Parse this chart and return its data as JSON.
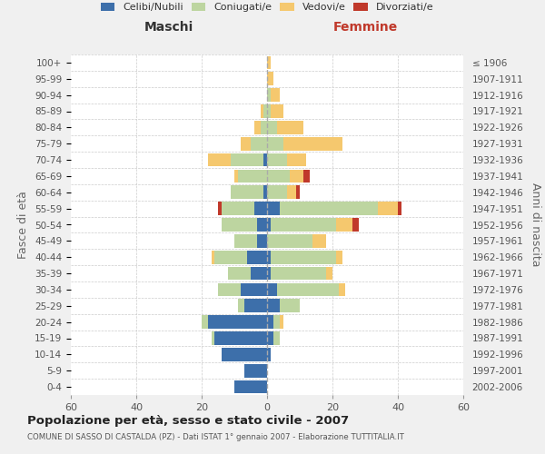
{
  "age_groups": [
    "0-4",
    "5-9",
    "10-14",
    "15-19",
    "20-24",
    "25-29",
    "30-34",
    "35-39",
    "40-44",
    "45-49",
    "50-54",
    "55-59",
    "60-64",
    "65-69",
    "70-74",
    "75-79",
    "80-84",
    "85-89",
    "90-94",
    "95-99",
    "100+"
  ],
  "birth_years": [
    "2002-2006",
    "1997-2001",
    "1992-1996",
    "1987-1991",
    "1982-1986",
    "1977-1981",
    "1972-1976",
    "1967-1971",
    "1962-1966",
    "1957-1961",
    "1952-1956",
    "1947-1951",
    "1942-1946",
    "1937-1941",
    "1932-1936",
    "1927-1931",
    "1922-1926",
    "1917-1921",
    "1912-1916",
    "1907-1911",
    "≤ 1906"
  ],
  "male": {
    "celibi": [
      10,
      7,
      14,
      16,
      18,
      7,
      8,
      5,
      6,
      3,
      3,
      4,
      1,
      0,
      1,
      0,
      0,
      0,
      0,
      0,
      0
    ],
    "coniugati": [
      0,
      0,
      0,
      1,
      2,
      2,
      7,
      7,
      10,
      7,
      11,
      10,
      10,
      9,
      10,
      5,
      2,
      1,
      0,
      0,
      0
    ],
    "vedovi": [
      0,
      0,
      0,
      0,
      0,
      0,
      0,
      0,
      1,
      0,
      0,
      0,
      0,
      1,
      7,
      3,
      2,
      1,
      0,
      0,
      0
    ],
    "divorziati": [
      0,
      0,
      0,
      0,
      0,
      0,
      0,
      0,
      0,
      0,
      0,
      1,
      0,
      0,
      0,
      0,
      0,
      0,
      0,
      0,
      0
    ]
  },
  "female": {
    "nubili": [
      0,
      0,
      1,
      2,
      2,
      4,
      3,
      1,
      1,
      0,
      1,
      4,
      0,
      0,
      0,
      0,
      0,
      0,
      0,
      0,
      0
    ],
    "coniugate": [
      0,
      0,
      0,
      2,
      2,
      6,
      19,
      17,
      20,
      14,
      20,
      30,
      6,
      7,
      6,
      5,
      3,
      1,
      1,
      0,
      0
    ],
    "vedove": [
      0,
      0,
      0,
      0,
      1,
      0,
      2,
      2,
      2,
      4,
      5,
      6,
      3,
      4,
      6,
      18,
      8,
      4,
      3,
      2,
      1
    ],
    "divorziate": [
      0,
      0,
      0,
      0,
      0,
      0,
      0,
      0,
      0,
      0,
      2,
      1,
      1,
      2,
      0,
      0,
      0,
      0,
      0,
      0,
      0
    ]
  },
  "colors": {
    "celibi_nubili": "#3d6faa",
    "coniugati": "#bdd5a0",
    "vedovi": "#f5c86e",
    "divorziati": "#c0392b"
  },
  "title": "Popolazione per età, sesso e stato civile - 2007",
  "subtitle": "COMUNE DI SASSO DI CASTALDA (PZ) - Dati ISTAT 1° gennaio 2007 - Elaborazione TUTTITALIA.IT",
  "label_maschi": "Maschi",
  "label_femmine": "Femmine",
  "ylabel_left": "Fasce di età",
  "ylabel_right": "Anni di nascita",
  "legend_labels": [
    "Celibi/Nubili",
    "Coniugati/e",
    "Vedovi/e",
    "Divorziati/e"
  ],
  "xlim": 60,
  "bg_color": "#f0f0f0",
  "plot_bg": "#ffffff",
  "grid_color": "#cccccc"
}
